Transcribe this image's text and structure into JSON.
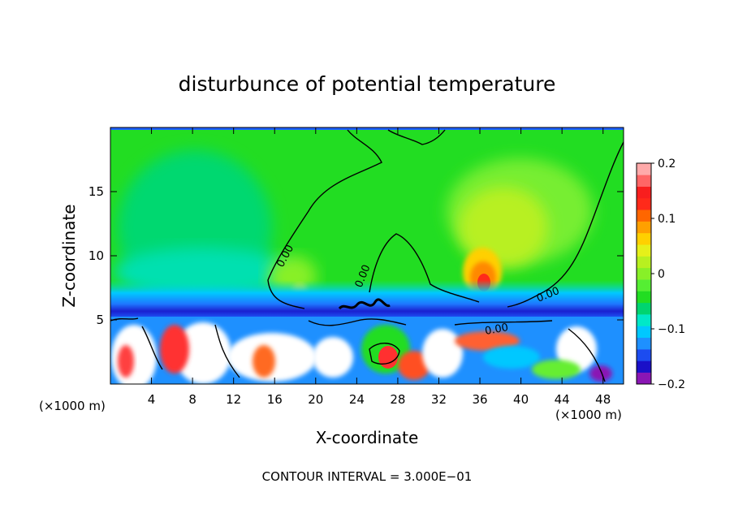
{
  "chart_data": {
    "type": "heatmap",
    "title": "disturbunce of potential temperature",
    "xlabel": "X-coordinate",
    "ylabel": "Z-coordinate",
    "x_unit_left": "(×1000 m)",
    "x_unit_right": "(×1000 m)",
    "xlim": [
      0,
      50
    ],
    "ylim": [
      0,
      20
    ],
    "x_ticks": [
      4,
      8,
      12,
      16,
      20,
      24,
      28,
      32,
      36,
      40,
      44,
      48
    ],
    "y_ticks": [
      5,
      10,
      15
    ],
    "colorbar": {
      "vmin": -0.2,
      "vmax": 0.2,
      "tick_values": [
        0.2,
        0.1,
        0,
        -0.1,
        -0.2
      ],
      "tick_labels": [
        "0.2",
        "0.1",
        "0",
        "−0.1",
        "−0.2"
      ],
      "colors": [
        "#8a16b4",
        "#1a10c8",
        "#1c4cf0",
        "#1e90ff",
        "#00c8ff",
        "#00e8c8",
        "#00d470",
        "#22dd22",
        "#55ee33",
        "#88f028",
        "#b8f020",
        "#e6f01a",
        "#ffd000",
        "#ffa000",
        "#ff6600",
        "#ff2a1a",
        "#f81e1e",
        "#ff6666",
        "#ffaaaa"
      ]
    },
    "contour_labels": [
      "0.00",
      "0.00",
      "0.00",
      "0.00"
    ],
    "footer": "CONTOUR INTERVAL = 3.000E−01"
  }
}
